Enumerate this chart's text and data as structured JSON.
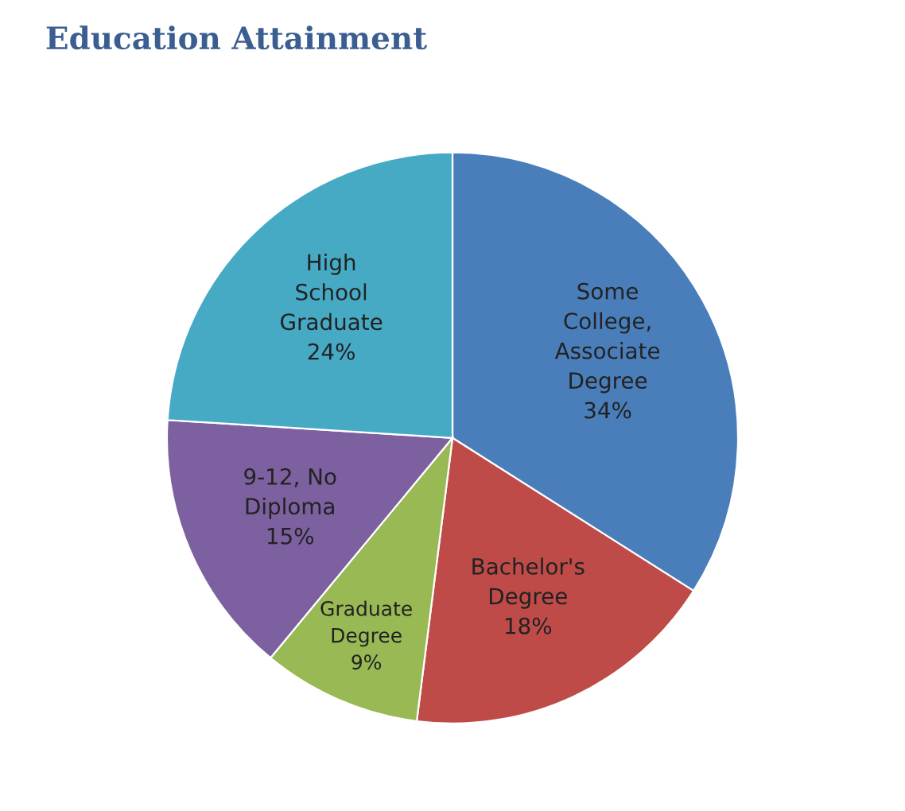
{
  "chart_data": {
    "type": "pie",
    "title": "Education Attainment",
    "categories": [
      "Some\nCollege,\nAssociate\nDegree",
      "Bachelor's\nDegree",
      "Graduate\nDegree",
      "9-12, No\nDiploma",
      "High\nSchool\nGraduate"
    ],
    "values": [
      34,
      18,
      9,
      15,
      24
    ],
    "value_labels": [
      "34%",
      "18%",
      "9%",
      "15%",
      "24%"
    ],
    "colors": [
      "#4a7ebb",
      "#be4b48",
      "#98b954",
      "#7d60a0",
      "#46aac5"
    ],
    "legend": false
  }
}
